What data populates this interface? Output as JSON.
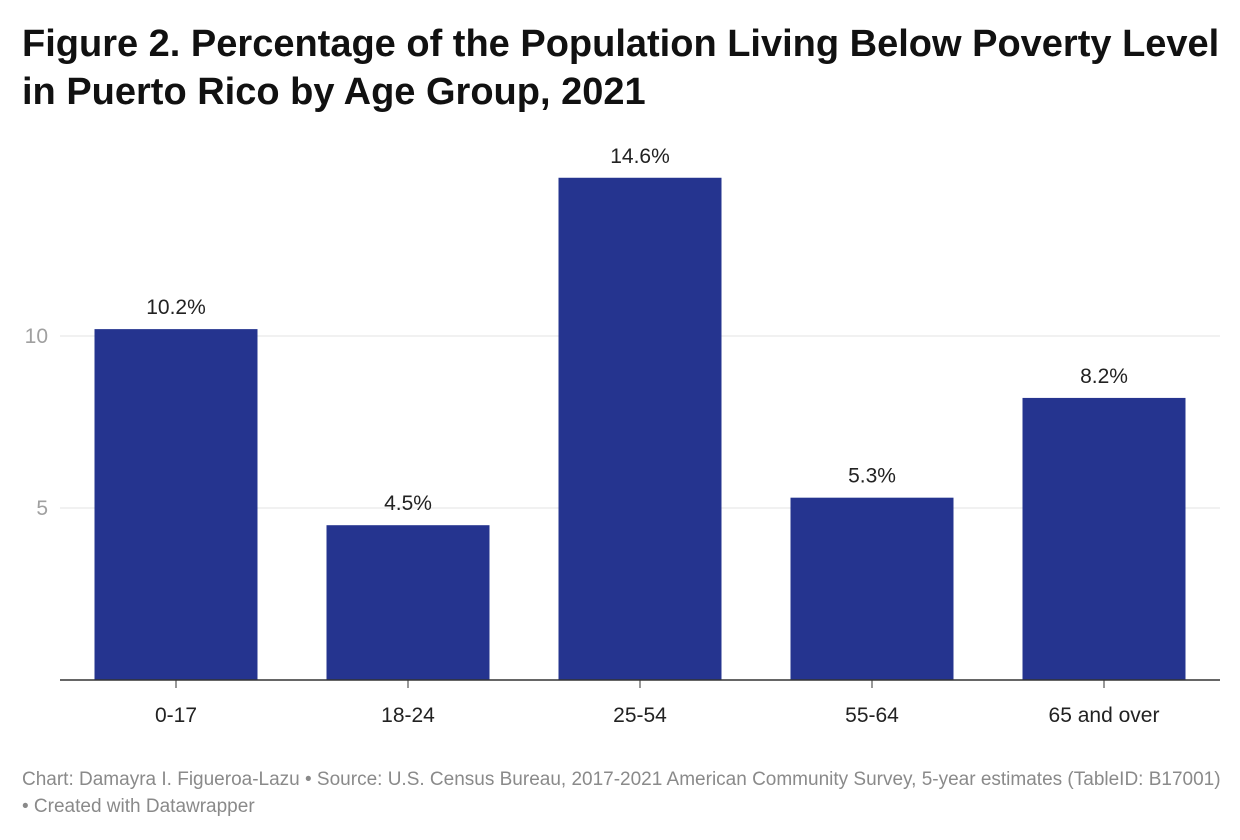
{
  "title": "Figure 2. Percentage of the Population Living Below Poverty Level in Puerto Rico by Age Group, 2021",
  "footer": "Chart: Damayra I. Figueroa-Lazu • Source: U.S. Census Bureau, 2017-2021 American Community Survey, 5-year estimates (TableID: B17001) • Created with Datawrapper",
  "chart_data": {
    "type": "bar",
    "title": "Figure 2. Percentage of the Population Living Below Poverty Level in Puerto Rico by Age Group, 2021",
    "xlabel": "",
    "ylabel": "",
    "categories": [
      "0-17",
      "18-24",
      "25-54",
      "55-64",
      "65 and over"
    ],
    "values": [
      10.2,
      4.5,
      14.6,
      5.3,
      8.2
    ],
    "value_labels": [
      "10.2%",
      "4.5%",
      "14.6%",
      "5.3%",
      "8.2%"
    ],
    "ylim": [
      0,
      15
    ],
    "yticks": [
      5,
      10
    ],
    "ytick_labels": [
      "5",
      "10"
    ],
    "grid": true,
    "bar_color": "#25348f"
  }
}
